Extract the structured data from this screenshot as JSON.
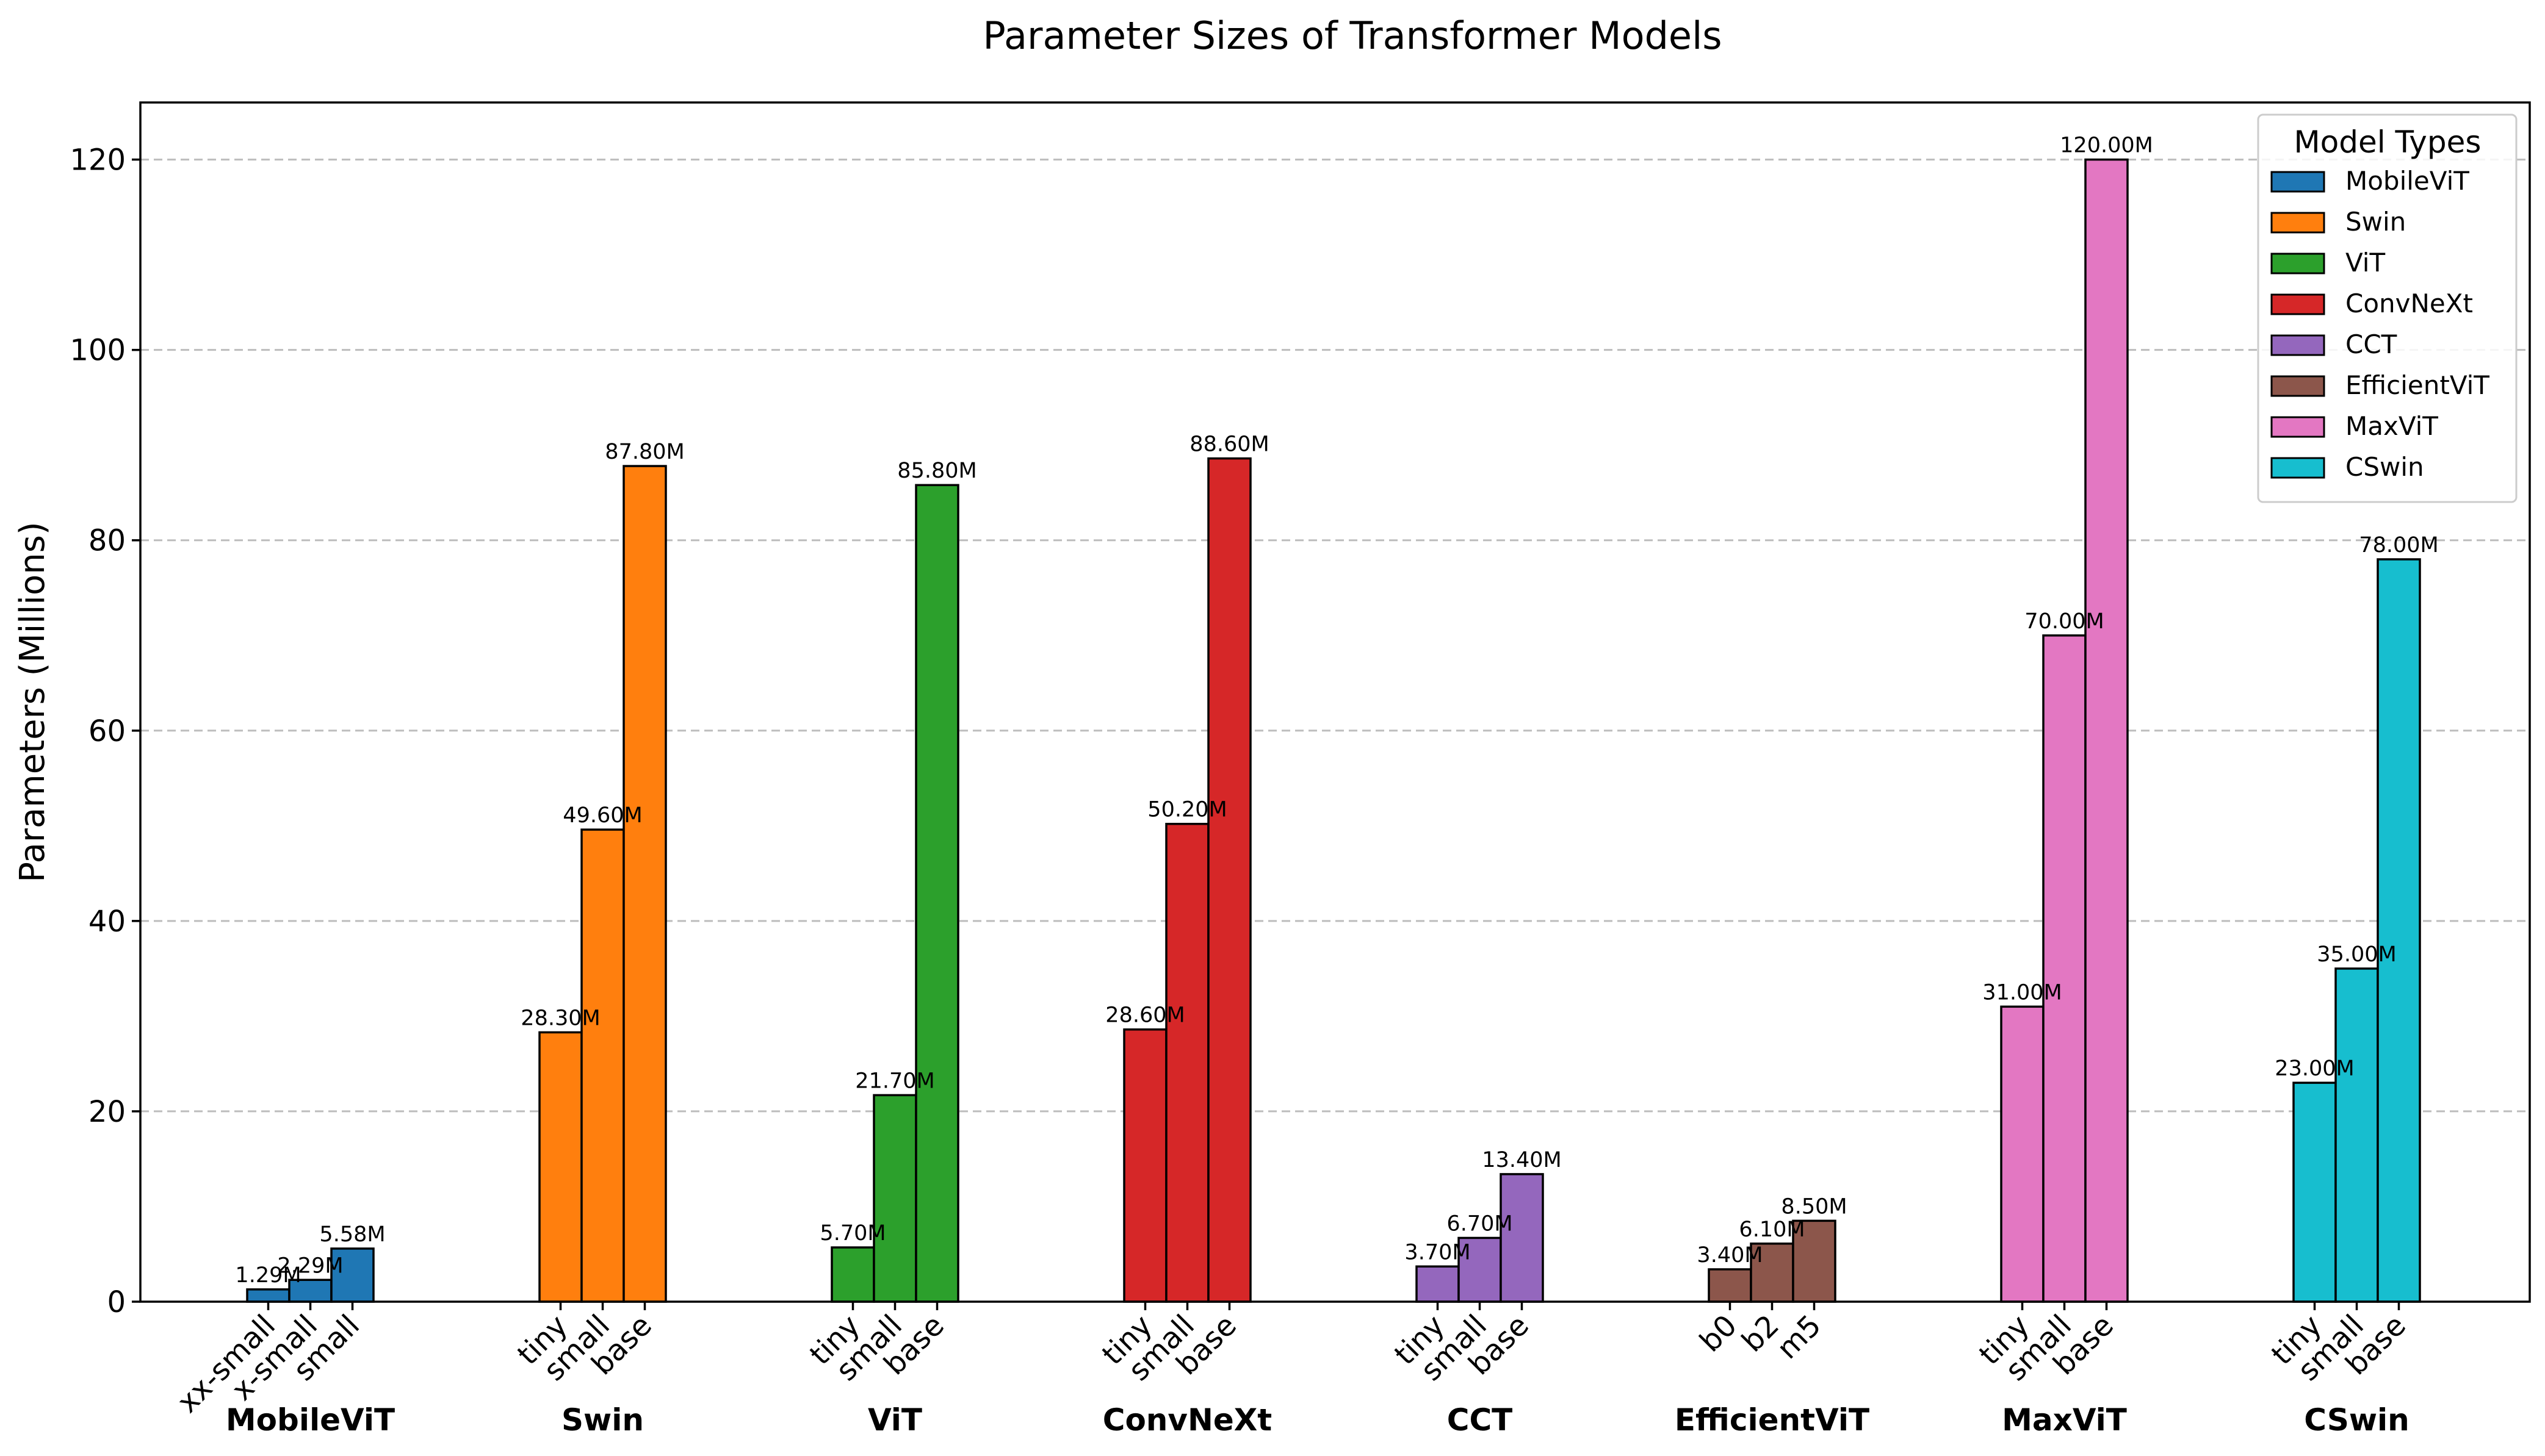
{
  "chart_data": {
    "type": "bar",
    "title": "Parameter Sizes of Transformer Models",
    "ylabel": "Parameters (Millions)",
    "xlabel": "",
    "ylim": [
      0,
      126
    ],
    "yticks": [
      0,
      20,
      40,
      60,
      80,
      100,
      120
    ],
    "grid": "horizontal dashed",
    "legend": {
      "title": "Model Types",
      "placement": "top-right"
    },
    "value_suffix": "M",
    "groups": [
      {
        "name": "MobileViT",
        "color": "#1f77b4",
        "variants": [
          "xx-small",
          "x-small",
          "small"
        ],
        "values": [
          1.29,
          2.29,
          5.58
        ]
      },
      {
        "name": "Swin",
        "color": "#ff7f0e",
        "variants": [
          "tiny",
          "small",
          "base"
        ],
        "values": [
          28.3,
          49.6,
          87.8
        ]
      },
      {
        "name": "ViT",
        "color": "#2ca02c",
        "variants": [
          "tiny",
          "small",
          "base"
        ],
        "values": [
          5.7,
          21.7,
          85.8
        ]
      },
      {
        "name": "ConvNeXt",
        "color": "#d62728",
        "variants": [
          "tiny",
          "small",
          "base"
        ],
        "values": [
          28.6,
          50.2,
          88.6
        ]
      },
      {
        "name": "CCT",
        "color": "#9467bd",
        "variants": [
          "tiny",
          "small",
          "base"
        ],
        "values": [
          3.7,
          6.7,
          13.4
        ]
      },
      {
        "name": "EfficientViT",
        "color": "#8c564b",
        "variants": [
          "b0",
          "b2",
          "m5"
        ],
        "values": [
          3.4,
          6.1,
          8.5
        ]
      },
      {
        "name": "MaxViT",
        "color": "#e377c2",
        "variants": [
          "tiny",
          "small",
          "base"
        ],
        "values": [
          31.0,
          70.0,
          120.0
        ]
      },
      {
        "name": "CSwin",
        "color": "#17becf",
        "variants": [
          "tiny",
          "small",
          "base"
        ],
        "values": [
          23.0,
          35.0,
          78.0
        ]
      }
    ]
  }
}
